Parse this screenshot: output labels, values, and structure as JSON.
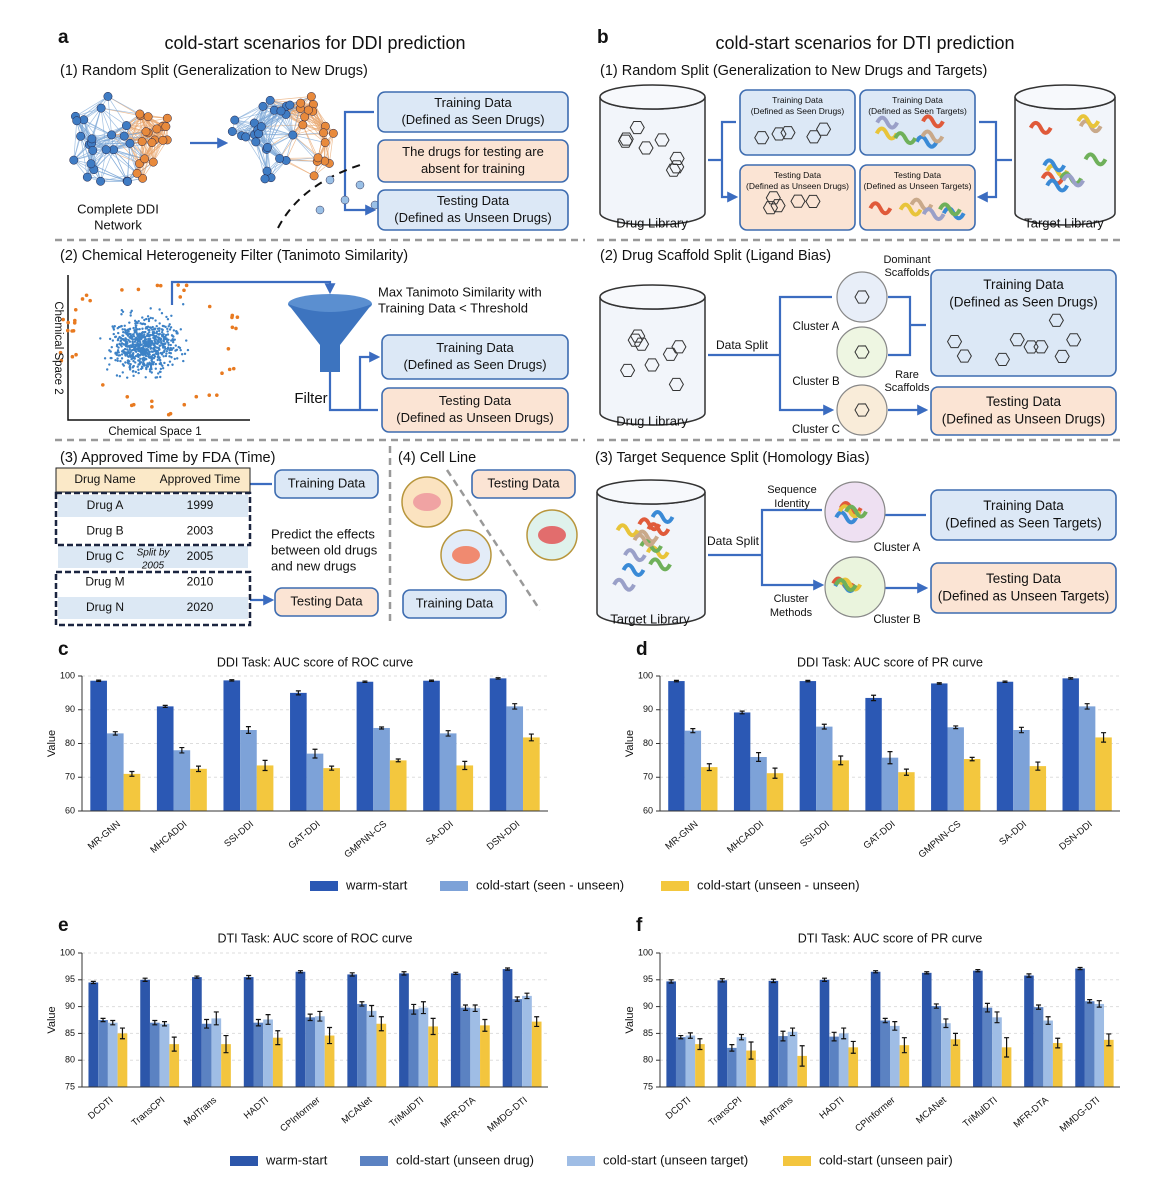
{
  "panel_a": {
    "label": "a",
    "title": "cold-start scenarios for DDI prediction",
    "random_split": {
      "heading": "(1) Random Split (Generalization to New Drugs)",
      "network_label": [
        "Complete DDI",
        "Network"
      ],
      "boxes": [
        [
          "Training Data",
          "(Defined as Seen Drugs)"
        ],
        [
          "The drugs for testing are",
          "absent for training"
        ],
        [
          "Testing Data",
          "(Defined as Unseen Drugs)"
        ]
      ]
    },
    "chemical_filter": {
      "heading": "(2) Chemical Heterogeneity Filter (Tanimoto Similarity)",
      "x_axis": "Chemical Space 1",
      "y_axis": "Chemical Space 2",
      "criterion": [
        "Max Tanimoto Similarity with",
        "Training Data < Threshold"
      ],
      "filter_label": "Filter",
      "boxes": [
        [
          "Training Data",
          "(Defined as Seen Drugs)"
        ],
        [
          "Testing Data",
          "(Defined as Unseen Drugs)"
        ]
      ]
    },
    "fda_time": {
      "heading": "(3) Approved Time by FDA (Time)",
      "table": {
        "header": [
          "Drug Name",
          "Approved Time"
        ],
        "rows": [
          [
            "Drug A",
            1999
          ],
          [
            "Drug B",
            2003
          ],
          [
            "Drug C",
            2005
          ],
          [
            "Drug M",
            2010
          ],
          [
            "Drug N",
            2020
          ]
        ]
      },
      "split_note": [
        "Split by",
        "2005"
      ],
      "boxes": [
        [
          "Training Data"
        ],
        [
          "Testing Data"
        ]
      ],
      "note": [
        "Predict the effects",
        "between old drugs",
        "and new drugs"
      ]
    },
    "cell_line": {
      "heading": "(4) Cell Line",
      "boxes": [
        [
          "Testing Data"
        ],
        [
          "Training Data"
        ]
      ]
    }
  },
  "panel_b": {
    "label": "b",
    "title": "cold-start scenarios for DTI prediction",
    "random_split": {
      "heading": "(1) Random Split (Generalization to New Drugs and Targets)",
      "drug_library": "Drug Library",
      "target_library": "Target Library",
      "boxes": [
        [
          "Training Data",
          "(Defined as Seen Drugs)"
        ],
        [
          "Training Data",
          "(Defined as Seen Targets)"
        ],
        [
          "Testing Data",
          "(Defined as Unseen Drugs)"
        ],
        [
          "Testing Data",
          "(Defined as Unseen Targets)"
        ]
      ]
    },
    "scaffold_split": {
      "heading": "(2) Drug Scaffold Split (Ligand Bias)",
      "library": "Drug Library",
      "split_label": "Data Split",
      "dominant": [
        "Dominant",
        "Scaffolds"
      ],
      "rare": [
        "Rare",
        "Scaffolds"
      ],
      "clusters": [
        "Cluster A",
        "Cluster B",
        "Cluster C"
      ],
      "boxes": [
        [
          "Training Data",
          "(Defined as Seen Drugs)"
        ],
        [
          "Testing Data",
          "(Defined as Unseen Drugs)"
        ]
      ]
    },
    "sequence_split": {
      "heading": "(3) Target Sequence Split (Homology Bias)",
      "library": "Target Library",
      "split_label": "Data Split",
      "sequence_identity": [
        "Sequence",
        "Identity"
      ],
      "cluster_methods": [
        "Cluster",
        "Methods"
      ],
      "clusters": [
        "Cluster A",
        "Cluster B"
      ],
      "boxes": [
        [
          "Training Data",
          "(Defined as Seen Targets)"
        ],
        [
          "Testing Data",
          "(Defined as Unseen Targets)"
        ]
      ]
    }
  },
  "chart_data": [
    {
      "type": "bar",
      "label": "c",
      "title": "DDI Task: AUC score of ROC curve",
      "ylabel": "Value",
      "categories": [
        "MR-GNN",
        "MHCADDI",
        "SSI-DDI",
        "GAT-DDI",
        "GMPNN-CS",
        "SA-DDI",
        "DSN-DDI"
      ],
      "ylim": [
        60,
        100
      ],
      "yticks": [
        60,
        70,
        80,
        90,
        100
      ],
      "grid": true,
      "series": [
        {
          "name": "warm-start",
          "color": "#2b58b4",
          "values": [
            98.6,
            91.0,
            98.7,
            95.0,
            98.3,
            98.6,
            99.3
          ],
          "errors": [
            0.2,
            0.3,
            0.2,
            0.6,
            0.2,
            0.2,
            0.2
          ]
        },
        {
          "name": "cold-start (seen - unseen)",
          "color": "#7da2d8",
          "values": [
            83.0,
            78.0,
            84.0,
            77.0,
            84.6,
            83.0,
            91.0
          ],
          "errors": [
            0.5,
            0.8,
            1.0,
            1.3,
            0.3,
            0.8,
            0.8
          ]
        },
        {
          "name": "cold-start (unseen - unseen)",
          "color": "#f3c73e",
          "values": [
            71.0,
            72.5,
            73.5,
            72.7,
            75.0,
            73.5,
            81.8
          ],
          "errors": [
            0.7,
            0.8,
            1.5,
            0.6,
            0.4,
            1.2,
            1.0
          ]
        }
      ]
    },
    {
      "type": "bar",
      "label": "d",
      "title": "DDI Task: AUC score of PR curve",
      "ylabel": "Value",
      "categories": [
        "MR-GNN",
        "MHCADDI",
        "SSI-DDI",
        "GAT-DDI",
        "GMPNN-CS",
        "SA-DDI",
        "DSN-DDI"
      ],
      "ylim": [
        60,
        100
      ],
      "yticks": [
        60,
        70,
        80,
        90,
        100
      ],
      "grid": true,
      "series": [
        {
          "color": "#2b58b4",
          "values": [
            98.5,
            89.2,
            98.5,
            93.5,
            97.8,
            98.3,
            99.3
          ],
          "errors": [
            0.2,
            0.4,
            0.2,
            0.8,
            0.2,
            0.2,
            0.2
          ]
        },
        {
          "color": "#7da2d8",
          "values": [
            83.8,
            76.0,
            85.0,
            75.8,
            84.8,
            84.0,
            91.0
          ],
          "errors": [
            0.6,
            1.3,
            0.7,
            1.8,
            0.4,
            0.8,
            0.8
          ]
        },
        {
          "color": "#f3c73e",
          "values": [
            73.0,
            71.2,
            75.0,
            71.5,
            75.4,
            73.3,
            81.8
          ],
          "errors": [
            1.0,
            1.5,
            1.3,
            0.9,
            0.5,
            1.2,
            1.4
          ]
        }
      ]
    },
    {
      "type": "bar",
      "label": "e",
      "title": "DTI Task: AUC score of ROC curve",
      "ylabel": "Value",
      "categories": [
        "DCDTI",
        "TransCPI",
        "MolTrans",
        "HADTI",
        "CPInformer",
        "MCANet",
        "TriMulDTI",
        "MFR-DTA",
        "MMDG-DTI"
      ],
      "ylim": [
        75,
        100
      ],
      "yticks": [
        75,
        80,
        85,
        90,
        95,
        100
      ],
      "grid": true,
      "series": [
        {
          "name": "warm-start",
          "color": "#2c56aa",
          "values": [
            94.5,
            95.0,
            95.5,
            95.5,
            96.5,
            96.0,
            96.2,
            96.2,
            97.0
          ],
          "errors": [
            0.2,
            0.3,
            0.2,
            0.3,
            0.2,
            0.3,
            0.3,
            0.2,
            0.2
          ]
        },
        {
          "name": "cold-start (unseen drug)",
          "color": "#5b82c2",
          "values": [
            87.5,
            87.0,
            86.8,
            87.0,
            88.0,
            90.5,
            89.5,
            89.8,
            91.4
          ],
          "errors": [
            0.3,
            0.4,
            0.8,
            0.6,
            0.6,
            0.4,
            0.9,
            0.5,
            0.4
          ]
        },
        {
          "name": "cold-start (unseen target)",
          "color": "#9fbde5",
          "values": [
            87.0,
            86.8,
            87.8,
            87.6,
            88.2,
            89.2,
            89.8,
            89.7,
            92.0
          ],
          "errors": [
            0.4,
            0.4,
            1.2,
            0.9,
            0.9,
            1.0,
            1.1,
            0.6,
            0.5
          ]
        },
        {
          "name": "cold-start (unseen pair)",
          "color": "#f3c53e",
          "values": [
            85.0,
            83.0,
            83.0,
            84.2,
            84.6,
            86.8,
            86.3,
            86.5,
            87.2
          ],
          "errors": [
            1.0,
            1.3,
            1.6,
            1.3,
            1.5,
            1.3,
            1.5,
            1.1,
            0.9
          ]
        }
      ]
    },
    {
      "type": "bar",
      "label": "f",
      "title": "DTI Task: AUC score of PR curve",
      "ylabel": "Value",
      "categories": [
        "DCDTI",
        "TransCPI",
        "MolTrans",
        "HADTI",
        "CPInformer",
        "MCANet",
        "TriMulDTI",
        "MFR-DTA",
        "MMDG-DTI"
      ],
      "ylim": [
        75,
        100
      ],
      "yticks": [
        75,
        80,
        85,
        90,
        95,
        100
      ],
      "grid": true,
      "series": [
        {
          "color": "#2c56aa",
          "values": [
            94.7,
            94.9,
            94.8,
            95.0,
            96.5,
            96.3,
            96.7,
            95.8,
            97.1
          ],
          "errors": [
            0.3,
            0.3,
            0.3,
            0.3,
            0.2,
            0.2,
            0.2,
            0.3,
            0.2
          ]
        },
        {
          "color": "#5b82c2",
          "values": [
            84.3,
            82.3,
            84.5,
            84.4,
            87.4,
            90.1,
            89.8,
            89.9,
            91.0
          ],
          "errors": [
            0.3,
            0.6,
            0.9,
            0.8,
            0.4,
            0.4,
            0.8,
            0.4,
            0.3
          ]
        },
        {
          "color": "#9fbde5",
          "values": [
            84.6,
            84.3,
            85.3,
            85.0,
            86.4,
            86.9,
            88.0,
            87.4,
            90.5
          ],
          "errors": [
            0.5,
            0.5,
            0.7,
            1.0,
            0.8,
            0.8,
            1.0,
            0.7,
            0.6
          ]
        },
        {
          "color": "#f3c53e",
          "values": [
            83.0,
            81.8,
            80.8,
            82.4,
            82.8,
            83.9,
            82.4,
            83.2,
            83.8
          ],
          "errors": [
            1.0,
            1.6,
            1.9,
            1.1,
            1.4,
            1.1,
            1.8,
            0.9,
            1.1
          ]
        }
      ]
    }
  ]
}
